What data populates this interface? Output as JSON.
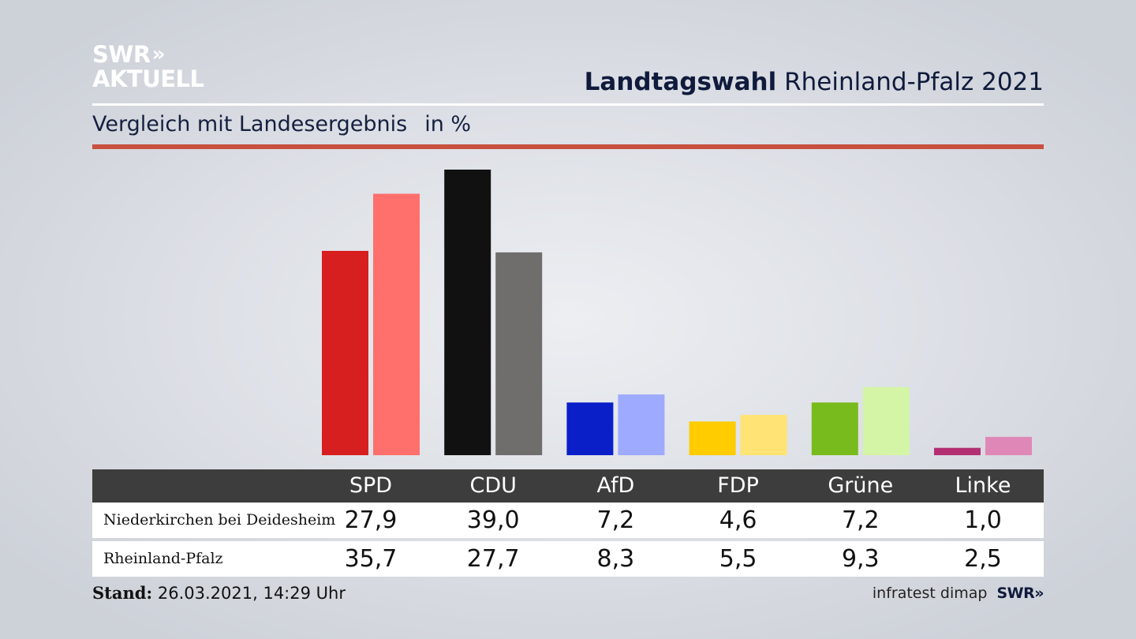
{
  "brand": {
    "line1": "SWR",
    "line2": "AKTUELL",
    "chevron": "»"
  },
  "header": {
    "title_bold": "Landtagswahl",
    "title_rest": "Rheinland-Pfalz 2021"
  },
  "subtitle": {
    "text": "Vergleich mit Landesergebnis",
    "unit": "in %"
  },
  "colors": {
    "accent_rule": "#c8503f",
    "table_header": "#3d3d3d"
  },
  "chart_data": {
    "type": "bar",
    "categories": [
      "SPD",
      "CDU",
      "AfD",
      "FDP",
      "Grüne",
      "Linke"
    ],
    "series": [
      {
        "name": "Niederkirchen bei Deidesheim",
        "values": [
          27.9,
          39.0,
          7.2,
          4.6,
          7.2,
          1.0
        ],
        "colors": [
          "#d71f1f",
          "#111111",
          "#0a1fc8",
          "#ffcc00",
          "#78bb1c",
          "#b22f72"
        ]
      },
      {
        "name": "Rheinland-Pfalz",
        "values": [
          35.7,
          27.7,
          8.3,
          5.5,
          9.3,
          2.5
        ],
        "colors": [
          "#ff6f6b",
          "#6f6e6c",
          "#9eaaff",
          "#ffe375",
          "#d4f5a6",
          "#df88b8"
        ]
      }
    ],
    "display_values": [
      [
        "27,9",
        "39,0",
        "7,2",
        "4,6",
        "7,2",
        "1,0"
      ],
      [
        "35,7",
        "27,7",
        "8,3",
        "5,5",
        "9,3",
        "2,5"
      ]
    ],
    "ylim": [
      0,
      39.0
    ],
    "grid": false
  },
  "footer": {
    "stand_label": "Stand:",
    "stand_value": "26.03.2021, 14:29 Uhr",
    "source": "infratest dimap",
    "brand": "SWR"
  }
}
